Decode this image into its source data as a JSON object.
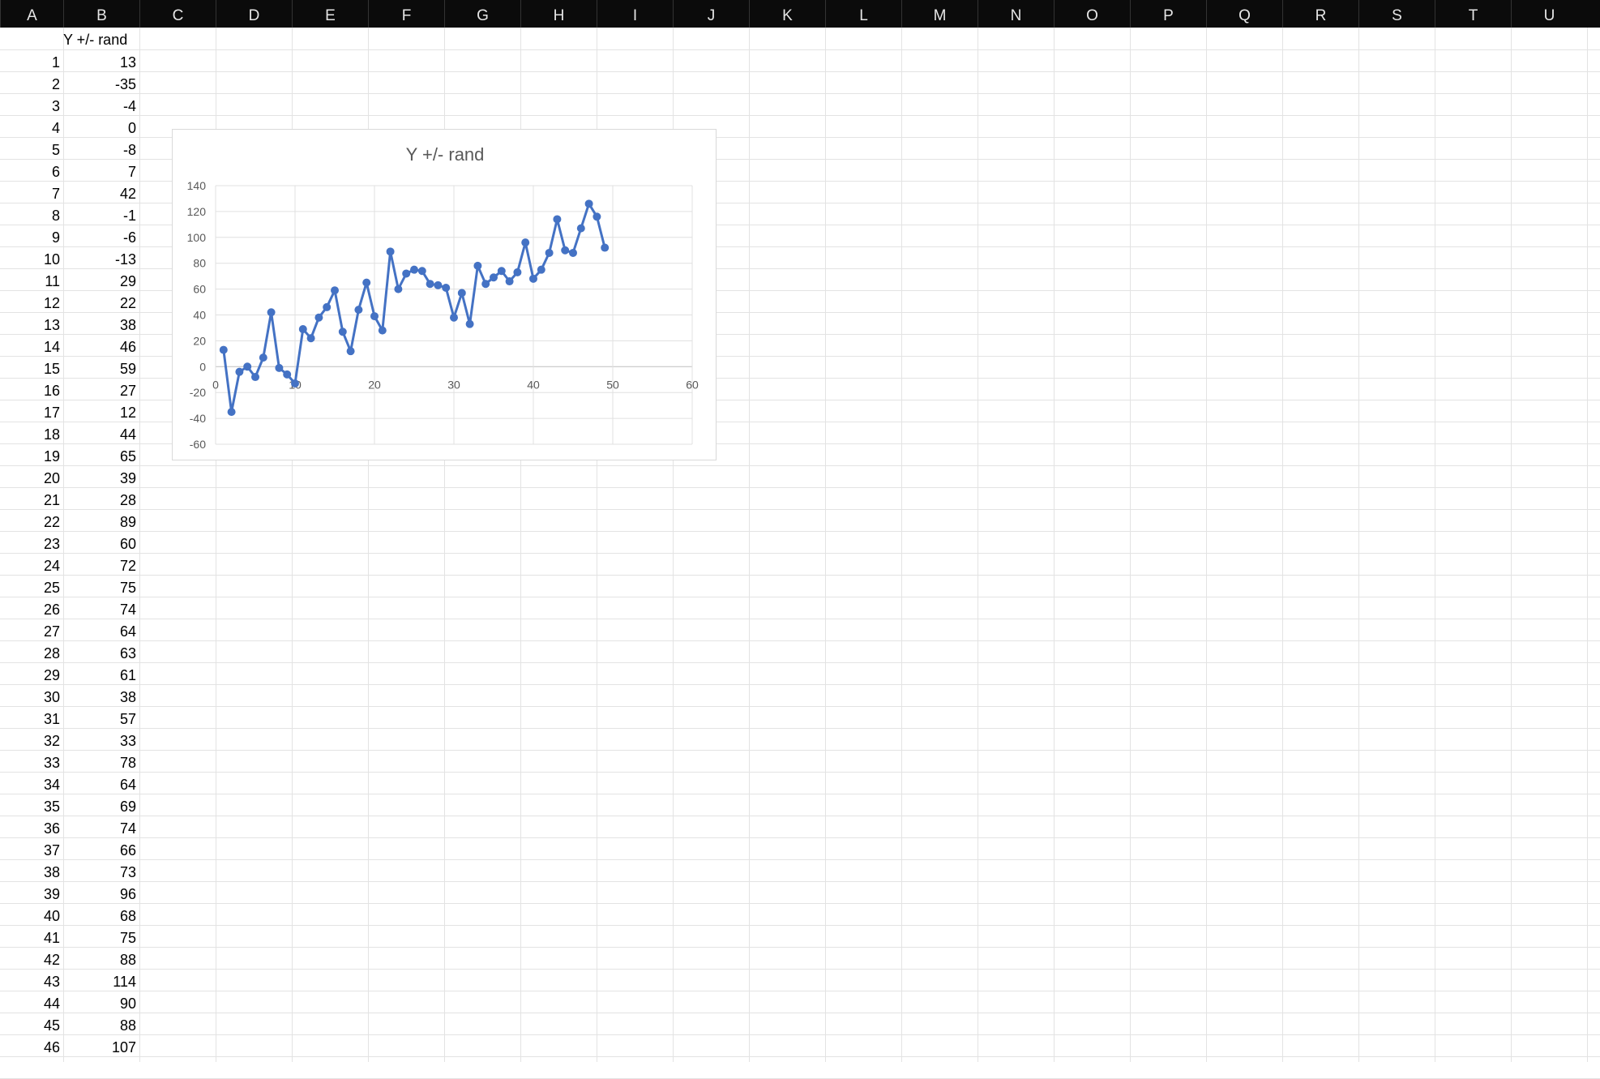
{
  "columns": [
    "A",
    "B",
    "C",
    "D",
    "E",
    "F",
    "G",
    "H",
    "I",
    "J",
    "K",
    "L",
    "M",
    "N",
    "O",
    "P",
    "Q",
    "R",
    "S",
    "T",
    "U"
  ],
  "header_cell": "Y +/- rand",
  "rows": [
    {
      "n": "1",
      "v": "13"
    },
    {
      "n": "2",
      "v": "-35"
    },
    {
      "n": "3",
      "v": "-4"
    },
    {
      "n": "4",
      "v": "0"
    },
    {
      "n": "5",
      "v": "-8"
    },
    {
      "n": "6",
      "v": "7"
    },
    {
      "n": "7",
      "v": "42"
    },
    {
      "n": "8",
      "v": "-1"
    },
    {
      "n": "9",
      "v": "-6"
    },
    {
      "n": "10",
      "v": "-13"
    },
    {
      "n": "11",
      "v": "29"
    },
    {
      "n": "12",
      "v": "22"
    },
    {
      "n": "13",
      "v": "38"
    },
    {
      "n": "14",
      "v": "46"
    },
    {
      "n": "15",
      "v": "59"
    },
    {
      "n": "16",
      "v": "27"
    },
    {
      "n": "17",
      "v": "12"
    },
    {
      "n": "18",
      "v": "44"
    },
    {
      "n": "19",
      "v": "65"
    },
    {
      "n": "20",
      "v": "39"
    },
    {
      "n": "21",
      "v": "28"
    },
    {
      "n": "22",
      "v": "89"
    },
    {
      "n": "23",
      "v": "60"
    },
    {
      "n": "24",
      "v": "72"
    },
    {
      "n": "25",
      "v": "75"
    },
    {
      "n": "26",
      "v": "74"
    },
    {
      "n": "27",
      "v": "64"
    },
    {
      "n": "28",
      "v": "63"
    },
    {
      "n": "29",
      "v": "61"
    },
    {
      "n": "30",
      "v": "38"
    },
    {
      "n": "31",
      "v": "57"
    },
    {
      "n": "32",
      "v": "33"
    },
    {
      "n": "33",
      "v": "78"
    },
    {
      "n": "34",
      "v": "64"
    },
    {
      "n": "35",
      "v": "69"
    },
    {
      "n": "36",
      "v": "74"
    },
    {
      "n": "37",
      "v": "66"
    },
    {
      "n": "38",
      "v": "73"
    },
    {
      "n": "39",
      "v": "96"
    },
    {
      "n": "40",
      "v": "68"
    },
    {
      "n": "41",
      "v": "75"
    },
    {
      "n": "42",
      "v": "88"
    },
    {
      "n": "43",
      "v": "114"
    },
    {
      "n": "44",
      "v": "90"
    },
    {
      "n": "45",
      "v": "88"
    },
    {
      "n": "46",
      "v": "107"
    }
  ],
  "colors": {
    "header_bg": "#0b0b0b",
    "header_text": "#e6e6e6",
    "series": "#4472c4",
    "gridline": "#e3e3e3"
  },
  "chart_data": {
    "type": "scatter",
    "title": "Y +/- rand",
    "xlabel": "",
    "ylabel": "",
    "xlim": [
      0,
      60
    ],
    "ylim": [
      -60,
      140
    ],
    "x_ticks": [
      0,
      10,
      20,
      30,
      40,
      50,
      60
    ],
    "y_ticks": [
      -60,
      -40,
      -20,
      0,
      20,
      40,
      60,
      80,
      100,
      120,
      140
    ],
    "grid": true,
    "legend": "none",
    "series": [
      {
        "style": "lines-and-markers",
        "x": [
          1,
          2,
          3,
          4,
          5,
          6,
          7,
          8,
          9,
          10,
          11,
          12,
          13,
          14,
          15,
          16,
          17,
          18,
          19,
          20,
          21,
          22,
          23,
          24,
          25,
          26,
          27,
          28,
          29,
          30,
          31,
          32,
          33,
          34,
          35,
          36,
          37,
          38,
          39,
          40,
          41,
          42,
          43,
          44,
          45,
          46,
          47,
          48,
          49
        ],
        "y": [
          13,
          -35,
          -4,
          0,
          -8,
          7,
          42,
          -1,
          -6,
          -13,
          29,
          22,
          38,
          46,
          59,
          27,
          12,
          44,
          65,
          39,
          28,
          89,
          60,
          72,
          75,
          74,
          64,
          63,
          61,
          38,
          57,
          33,
          78,
          64,
          69,
          74,
          66,
          73,
          96,
          68,
          75,
          88,
          114,
          90,
          88,
          107,
          126,
          116,
          92
        ]
      }
    ]
  }
}
